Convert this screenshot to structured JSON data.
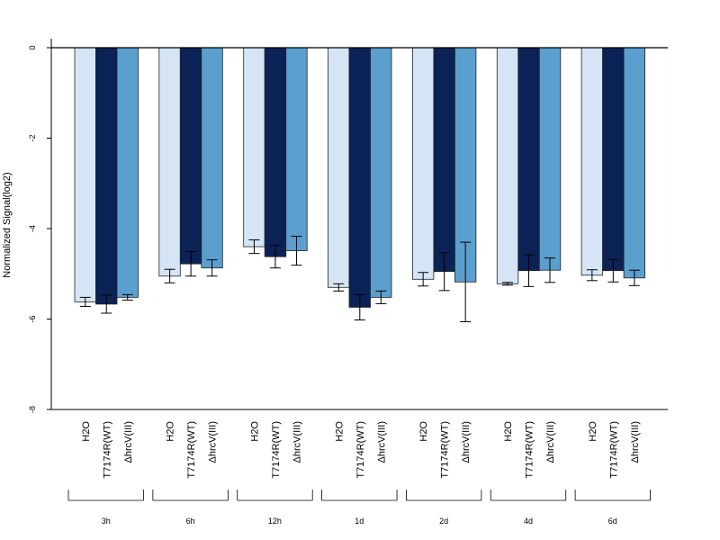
{
  "chart_data": {
    "type": "bar",
    "ylabel": "Normalized Signal(log2)",
    "ylim": [
      -8,
      0
    ],
    "yticks": [
      0,
      -2,
      -4,
      -6,
      -8
    ],
    "grid": false,
    "categories": [
      "3h",
      "6h",
      "12h",
      "1d",
      "2d",
      "4d",
      "6d"
    ],
    "conditions": [
      "H2O",
      "T7174R(WT)",
      "ΔhrcV(III)"
    ],
    "series": [
      {
        "color": "#d6e5f5",
        "values": [
          -5.62,
          -5.05,
          -4.4,
          -5.3,
          -5.12,
          -5.22,
          -5.03
        ],
        "errors": [
          0.1,
          0.15,
          0.15,
          0.08,
          0.15,
          0.03,
          0.12
        ]
      },
      {
        "color": "#0b2257",
        "values": [
          -5.67,
          -4.78,
          -4.62,
          -5.74,
          -4.95,
          -4.93,
          -4.93
        ],
        "errors": [
          0.2,
          0.27,
          0.25,
          0.28,
          0.42,
          0.35,
          0.25
        ]
      },
      {
        "color": "#5b9fcf",
        "values": [
          -5.52,
          -4.87,
          -4.49,
          -5.52,
          -5.18,
          -4.92,
          -5.09
        ],
        "errors": [
          0.06,
          0.18,
          0.32,
          0.14,
          0.88,
          0.27,
          0.17
        ]
      }
    ]
  }
}
